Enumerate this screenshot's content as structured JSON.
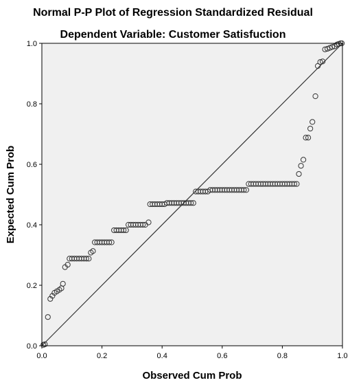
{
  "chart_data": {
    "type": "scatter",
    "title": "Normal P-P Plot of Regression Standardized Residual",
    "subtitle": "Dependent Variable: Customer Satisfuction",
    "xlabel": "Observed Cum Prob",
    "ylabel": "Expected Cum Prob",
    "xlim": [
      0,
      1
    ],
    "ylim": [
      0,
      1
    ],
    "x_ticks": [
      "0.0",
      "0.2",
      "0.4",
      "0.6",
      "0.8",
      "1.0"
    ],
    "y_ticks": [
      "0.0",
      "0.2",
      "0.4",
      "0.6",
      "0.8",
      "1.0"
    ],
    "grid": false,
    "reference_line": [
      [
        0,
        0
      ],
      [
        1,
        1
      ]
    ],
    "colors": {
      "plot_background": "#f0f0f0",
      "point_stroke": "#333333",
      "line": "#333333"
    },
    "points": [
      [
        0.005,
        0.003
      ],
      [
        0.01,
        0.005
      ],
      [
        0.02,
        0.095
      ],
      [
        0.028,
        0.155
      ],
      [
        0.035,
        0.165
      ],
      [
        0.042,
        0.175
      ],
      [
        0.05,
        0.18
      ],
      [
        0.058,
        0.185
      ],
      [
        0.065,
        0.19
      ],
      [
        0.07,
        0.205
      ],
      [
        0.077,
        0.26
      ],
      [
        0.086,
        0.268
      ],
      [
        0.092,
        0.288
      ],
      [
        0.1,
        0.288
      ],
      [
        0.108,
        0.288
      ],
      [
        0.116,
        0.288
      ],
      [
        0.124,
        0.288
      ],
      [
        0.132,
        0.288
      ],
      [
        0.14,
        0.288
      ],
      [
        0.148,
        0.288
      ],
      [
        0.156,
        0.288
      ],
      [
        0.163,
        0.308
      ],
      [
        0.17,
        0.313
      ],
      [
        0.176,
        0.342
      ],
      [
        0.184,
        0.342
      ],
      [
        0.192,
        0.342
      ],
      [
        0.2,
        0.342
      ],
      [
        0.208,
        0.342
      ],
      [
        0.216,
        0.342
      ],
      [
        0.224,
        0.342
      ],
      [
        0.232,
        0.342
      ],
      [
        0.24,
        0.382
      ],
      [
        0.248,
        0.382
      ],
      [
        0.256,
        0.382
      ],
      [
        0.264,
        0.382
      ],
      [
        0.272,
        0.382
      ],
      [
        0.28,
        0.382
      ],
      [
        0.288,
        0.4
      ],
      [
        0.296,
        0.4
      ],
      [
        0.304,
        0.4
      ],
      [
        0.312,
        0.4
      ],
      [
        0.32,
        0.4
      ],
      [
        0.328,
        0.4
      ],
      [
        0.336,
        0.4
      ],
      [
        0.344,
        0.4
      ],
      [
        0.355,
        0.408
      ],
      [
        0.36,
        0.468
      ],
      [
        0.368,
        0.468
      ],
      [
        0.376,
        0.468
      ],
      [
        0.384,
        0.468
      ],
      [
        0.392,
        0.468
      ],
      [
        0.4,
        0.468
      ],
      [
        0.408,
        0.468
      ],
      [
        0.416,
        0.472
      ],
      [
        0.424,
        0.472
      ],
      [
        0.432,
        0.472
      ],
      [
        0.44,
        0.472
      ],
      [
        0.448,
        0.472
      ],
      [
        0.456,
        0.472
      ],
      [
        0.464,
        0.472
      ],
      [
        0.472,
        0.472
      ],
      [
        0.48,
        0.472
      ],
      [
        0.488,
        0.472
      ],
      [
        0.496,
        0.472
      ],
      [
        0.504,
        0.472
      ],
      [
        0.512,
        0.51
      ],
      [
        0.52,
        0.51
      ],
      [
        0.528,
        0.51
      ],
      [
        0.536,
        0.51
      ],
      [
        0.544,
        0.51
      ],
      [
        0.552,
        0.51
      ],
      [
        0.56,
        0.515
      ],
      [
        0.568,
        0.515
      ],
      [
        0.576,
        0.515
      ],
      [
        0.584,
        0.515
      ],
      [
        0.592,
        0.515
      ],
      [
        0.6,
        0.515
      ],
      [
        0.608,
        0.515
      ],
      [
        0.616,
        0.515
      ],
      [
        0.624,
        0.515
      ],
      [
        0.632,
        0.515
      ],
      [
        0.64,
        0.515
      ],
      [
        0.648,
        0.515
      ],
      [
        0.656,
        0.515
      ],
      [
        0.664,
        0.515
      ],
      [
        0.672,
        0.515
      ],
      [
        0.68,
        0.515
      ],
      [
        0.688,
        0.535
      ],
      [
        0.696,
        0.535
      ],
      [
        0.704,
        0.535
      ],
      [
        0.712,
        0.535
      ],
      [
        0.72,
        0.535
      ],
      [
        0.728,
        0.535
      ],
      [
        0.736,
        0.535
      ],
      [
        0.744,
        0.535
      ],
      [
        0.752,
        0.535
      ],
      [
        0.76,
        0.535
      ],
      [
        0.768,
        0.535
      ],
      [
        0.776,
        0.535
      ],
      [
        0.784,
        0.535
      ],
      [
        0.792,
        0.535
      ],
      [
        0.8,
        0.535
      ],
      [
        0.808,
        0.535
      ],
      [
        0.816,
        0.535
      ],
      [
        0.824,
        0.535
      ],
      [
        0.832,
        0.535
      ],
      [
        0.84,
        0.535
      ],
      [
        0.848,
        0.535
      ],
      [
        0.855,
        0.568
      ],
      [
        0.862,
        0.595
      ],
      [
        0.87,
        0.615
      ],
      [
        0.878,
        0.688
      ],
      [
        0.886,
        0.688
      ],
      [
        0.893,
        0.718
      ],
      [
        0.9,
        0.74
      ],
      [
        0.91,
        0.825
      ],
      [
        0.918,
        0.925
      ],
      [
        0.926,
        0.938
      ],
      [
        0.934,
        0.94
      ],
      [
        0.942,
        0.98
      ],
      [
        0.95,
        0.982
      ],
      [
        0.958,
        0.985
      ],
      [
        0.966,
        0.988
      ],
      [
        0.974,
        0.99
      ],
      [
        0.982,
        0.996
      ],
      [
        0.988,
        0.998
      ],
      [
        0.994,
        1.0
      ],
      [
        0.998,
        1.0
      ]
    ]
  }
}
